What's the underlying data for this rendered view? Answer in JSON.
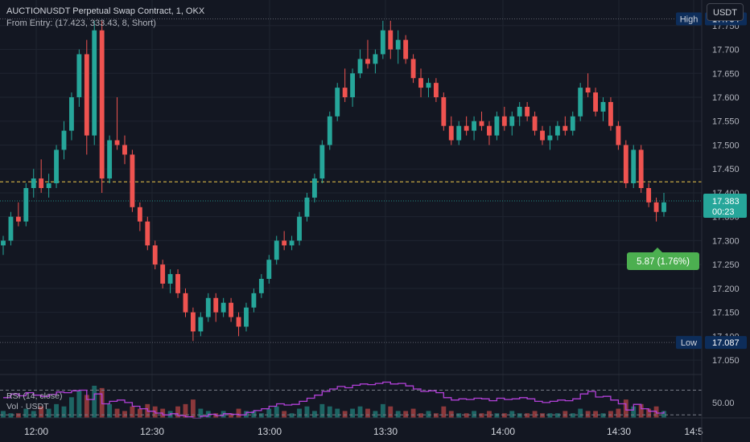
{
  "header": {
    "title": "AUCTIONUSDT Perpetual Swap Contract, 1, OKX",
    "subtitle": "From Entry: (17.423, 333.43, 8, Short)"
  },
  "currency_button": "USDT",
  "price_axis": {
    "high_label": "High",
    "high_value": "17.764",
    "low_label": "Low",
    "low_value": "17.087",
    "last_price": "17.383",
    "countdown": "00:23"
  },
  "pnl_badge": "5.87 (1.76%)",
  "indicators": {
    "rsi_label": "RSI (14, close)",
    "vol_label": "Vol · USDT",
    "rsi_axis_label": "50.00"
  },
  "colors": {
    "background": "#131722",
    "up": "#26a69a",
    "down": "#ef5350",
    "rsi": "#b240d8",
    "entry_line": "#f0c94a",
    "pnl_badge": "#4caf50",
    "axis_badge": "#0d2d5a"
  },
  "chart_data": {
    "type": "candlestick",
    "symbol": "AUCTIONUSDT",
    "interval_minutes": 1,
    "y_ticks": [
      17.05,
      17.1,
      17.15,
      17.2,
      17.25,
      17.3,
      17.35,
      17.4,
      17.45,
      17.5,
      17.55,
      17.6,
      17.65,
      17.7,
      17.75
    ],
    "ylim": [
      17.03,
      17.79
    ],
    "x_ticks": [
      "12:00",
      "12:30",
      "13:00",
      "13:30",
      "14:00",
      "14:30",
      "14:5"
    ],
    "high": 17.764,
    "low": 17.087,
    "entry_price": 17.423,
    "last_price": 17.383,
    "rsi_levels": [
      70,
      30
    ],
    "candles": [
      [
        17.29,
        17.31,
        17.27,
        17.3
      ],
      [
        17.3,
        17.36,
        17.29,
        17.35
      ],
      [
        17.35,
        17.38,
        17.33,
        17.34
      ],
      [
        17.34,
        17.42,
        17.33,
        17.41
      ],
      [
        17.41,
        17.45,
        17.39,
        17.43
      ],
      [
        17.43,
        17.47,
        17.4,
        17.41
      ],
      [
        17.41,
        17.44,
        17.39,
        17.42
      ],
      [
        17.42,
        17.5,
        17.41,
        17.49
      ],
      [
        17.49,
        17.55,
        17.47,
        17.53
      ],
      [
        17.53,
        17.61,
        17.51,
        17.6
      ],
      [
        17.6,
        17.7,
        17.58,
        17.69
      ],
      [
        17.69,
        17.72,
        17.48,
        17.52
      ],
      [
        17.52,
        17.76,
        17.5,
        17.74
      ],
      [
        17.74,
        17.76,
        17.4,
        17.43
      ],
      [
        17.43,
        17.52,
        17.42,
        17.51
      ],
      [
        17.51,
        17.6,
        17.49,
        17.5
      ],
      [
        17.5,
        17.52,
        17.46,
        17.48
      ],
      [
        17.48,
        17.49,
        17.36,
        17.37
      ],
      [
        17.37,
        17.38,
        17.32,
        17.34
      ],
      [
        17.34,
        17.35,
        17.28,
        17.29
      ],
      [
        17.29,
        17.3,
        17.24,
        17.25
      ],
      [
        17.25,
        17.26,
        17.2,
        17.21
      ],
      [
        17.21,
        17.24,
        17.19,
        17.23
      ],
      [
        17.23,
        17.24,
        17.18,
        17.19
      ],
      [
        17.19,
        17.2,
        17.14,
        17.15
      ],
      [
        17.15,
        17.16,
        17.09,
        17.11
      ],
      [
        17.11,
        17.15,
        17.1,
        17.14
      ],
      [
        17.14,
        17.19,
        17.13,
        17.18
      ],
      [
        17.18,
        17.19,
        17.13,
        17.15
      ],
      [
        17.15,
        17.18,
        17.14,
        17.17
      ],
      [
        17.17,
        17.18,
        17.13,
        17.14
      ],
      [
        17.14,
        17.15,
        17.1,
        17.12
      ],
      [
        17.12,
        17.17,
        17.11,
        17.16
      ],
      [
        17.16,
        17.2,
        17.15,
        17.19
      ],
      [
        17.19,
        17.23,
        17.18,
        17.22
      ],
      [
        17.22,
        17.27,
        17.21,
        17.26
      ],
      [
        17.26,
        17.31,
        17.25,
        17.3
      ],
      [
        17.3,
        17.32,
        17.28,
        17.29
      ],
      [
        17.29,
        17.31,
        17.28,
        17.3
      ],
      [
        17.3,
        17.36,
        17.29,
        17.35
      ],
      [
        17.35,
        17.4,
        17.34,
        17.39
      ],
      [
        17.39,
        17.44,
        17.38,
        17.43
      ],
      [
        17.43,
        17.51,
        17.42,
        17.5
      ],
      [
        17.5,
        17.57,
        17.49,
        17.56
      ],
      [
        17.56,
        17.63,
        17.55,
        17.62
      ],
      [
        17.62,
        17.66,
        17.59,
        17.6
      ],
      [
        17.6,
        17.66,
        17.58,
        17.65
      ],
      [
        17.65,
        17.7,
        17.64,
        17.68
      ],
      [
        17.68,
        17.72,
        17.66,
        17.67
      ],
      [
        17.67,
        17.7,
        17.65,
        17.69
      ],
      [
        17.69,
        17.76,
        17.68,
        17.74
      ],
      [
        17.74,
        17.76,
        17.68,
        17.7
      ],
      [
        17.7,
        17.74,
        17.67,
        17.72
      ],
      [
        17.72,
        17.73,
        17.67,
        17.68
      ],
      [
        17.68,
        17.69,
        17.63,
        17.64
      ],
      [
        17.64,
        17.66,
        17.6,
        17.62
      ],
      [
        17.62,
        17.64,
        17.6,
        17.63
      ],
      [
        17.63,
        17.64,
        17.59,
        17.6
      ],
      [
        17.6,
        17.61,
        17.53,
        17.54
      ],
      [
        17.54,
        17.56,
        17.5,
        17.51
      ],
      [
        17.51,
        17.55,
        17.5,
        17.54
      ],
      [
        17.54,
        17.56,
        17.52,
        17.53
      ],
      [
        17.53,
        17.56,
        17.51,
        17.55
      ],
      [
        17.55,
        17.57,
        17.53,
        17.54
      ],
      [
        17.54,
        17.55,
        17.5,
        17.52
      ],
      [
        17.52,
        17.57,
        17.51,
        17.56
      ],
      [
        17.56,
        17.58,
        17.53,
        17.54
      ],
      [
        17.54,
        17.57,
        17.52,
        17.56
      ],
      [
        17.56,
        17.59,
        17.54,
        17.58
      ],
      [
        17.58,
        17.59,
        17.55,
        17.56
      ],
      [
        17.56,
        17.57,
        17.52,
        17.53
      ],
      [
        17.53,
        17.54,
        17.5,
        17.51
      ],
      [
        17.51,
        17.54,
        17.49,
        17.52
      ],
      [
        17.52,
        17.55,
        17.51,
        17.54
      ],
      [
        17.54,
        17.56,
        17.52,
        17.53
      ],
      [
        17.53,
        17.57,
        17.52,
        17.56
      ],
      [
        17.56,
        17.63,
        17.55,
        17.62
      ],
      [
        17.62,
        17.65,
        17.6,
        17.61
      ],
      [
        17.61,
        17.62,
        17.56,
        17.57
      ],
      [
        17.57,
        17.6,
        17.55,
        17.59
      ],
      [
        17.59,
        17.6,
        17.53,
        17.54
      ],
      [
        17.54,
        17.55,
        17.49,
        17.5
      ],
      [
        17.5,
        17.51,
        17.41,
        17.42
      ],
      [
        17.42,
        17.5,
        17.41,
        17.49
      ],
      [
        17.49,
        17.5,
        17.4,
        17.41
      ],
      [
        17.41,
        17.42,
        17.37,
        17.38
      ],
      [
        17.38,
        17.39,
        17.34,
        17.36
      ],
      [
        17.36,
        17.4,
        17.35,
        17.38
      ]
    ],
    "rsi": [
      58,
      64,
      61,
      66,
      62,
      60,
      63,
      67,
      66,
      69,
      70,
      55,
      64,
      48,
      52,
      54,
      50,
      44,
      40,
      36,
      33,
      30,
      32,
      29,
      27,
      25,
      28,
      31,
      29,
      32,
      31,
      30,
      34,
      37,
      40,
      44,
      48,
      46,
      47,
      52,
      57,
      62,
      68,
      72,
      76,
      74,
      78,
      80,
      79,
      81,
      83,
      80,
      81,
      77,
      72,
      68,
      69,
      66,
      58,
      54,
      56,
      55,
      57,
      56,
      53,
      57,
      55,
      56,
      58,
      56,
      52,
      50,
      52,
      54,
      53,
      56,
      64,
      68,
      59,
      60,
      54,
      48,
      38,
      47,
      40,
      36,
      33,
      36
    ],
    "volume": [
      3,
      2,
      2,
      4,
      3,
      5,
      4,
      6,
      5,
      9,
      12,
      10,
      14,
      13,
      6,
      4,
      3,
      5,
      4,
      6,
      5,
      4,
      3,
      5,
      6,
      8,
      4,
      3,
      2,
      3,
      2,
      4,
      3,
      3,
      2,
      4,
      5,
      3,
      2,
      4,
      5,
      3,
      6,
      5,
      4,
      3,
      4,
      5,
      4,
      3,
      6,
      5,
      3,
      3,
      4,
      2,
      3,
      2,
      5,
      3,
      2,
      2,
      3,
      2,
      3,
      2,
      2,
      3,
      2,
      2,
      3,
      2,
      2,
      2,
      3,
      2,
      4,
      3,
      3,
      2,
      3,
      4,
      8,
      5,
      6,
      4,
      5,
      3
    ]
  }
}
